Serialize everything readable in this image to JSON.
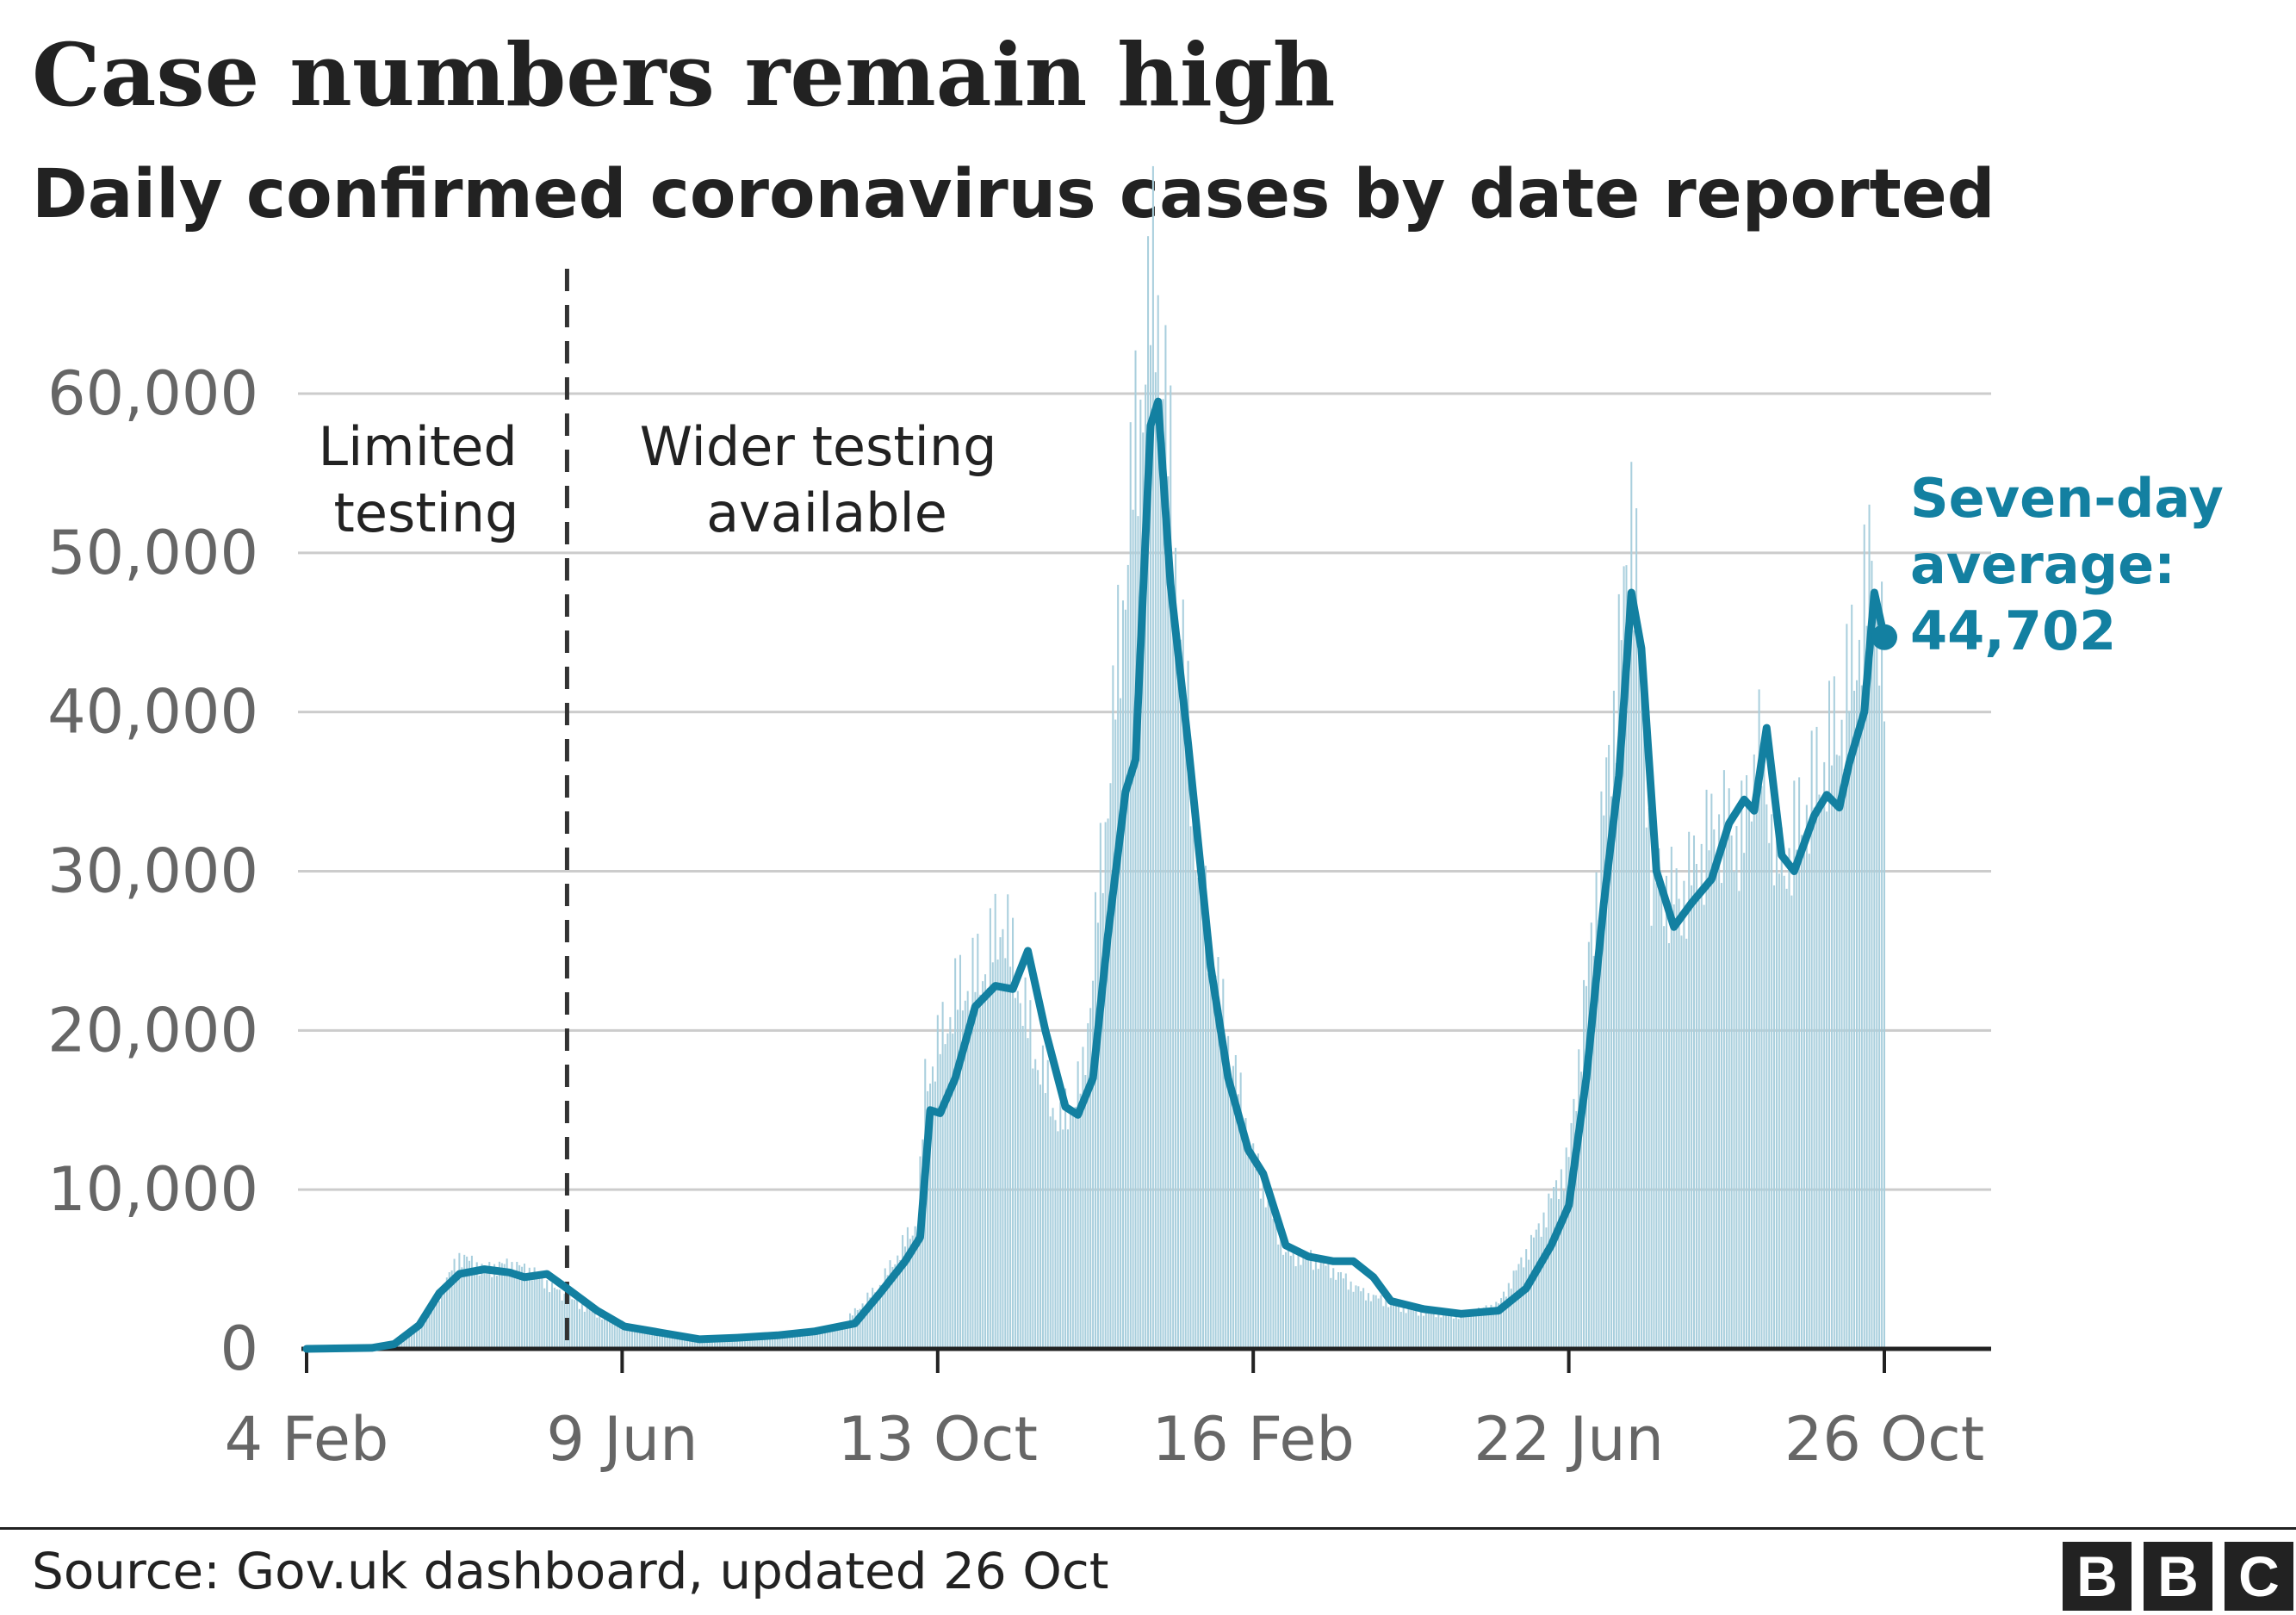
{
  "header": {
    "title": "Case numbers remain high",
    "subtitle": "Daily confirmed coronavirus cases by date reported"
  },
  "annotations": {
    "limited_testing": [
      "Limited",
      "testing"
    ],
    "wider_testing": [
      "Wider testing",
      "available"
    ],
    "average_label": [
      "Seven-day",
      "average:",
      "44,702"
    ]
  },
  "footer": {
    "source": "Source: Gov.uk dashboard, updated 26 Oct",
    "logo": [
      "B",
      "B",
      "C"
    ]
  },
  "colors": {
    "line": "#1380A1",
    "bars": "#a9cfdd",
    "grid": "#cccccc",
    "axis": "#222222",
    "divider": "#333333",
    "text": "#222222",
    "tick_text": "#666666"
  },
  "chart_data": {
    "type": "line",
    "title": "Case numbers remain high",
    "subtitle": "Daily confirmed coronavirus cases by date reported",
    "xlabel": "",
    "ylabel": "",
    "x_ticks": [
      "4 Feb",
      "9 Jun",
      "13 Oct",
      "16 Feb",
      "22 Jun",
      "26 Oct"
    ],
    "x_range": [
      "2020-02-04",
      "2021-10-26"
    ],
    "ylim": [
      0,
      60000
    ],
    "y_ticks": [
      "0",
      "10,000",
      "20,000",
      "30,000",
      "40,000",
      "50,000",
      "60,000"
    ],
    "y_tick_values": [
      0,
      10000,
      20000,
      30000,
      40000,
      50000,
      60000
    ],
    "grid": "horizontal",
    "divider_date": "2020-05-18",
    "series": [
      {
        "name": "Daily confirmed cases",
        "style": "bars",
        "points": [
          [
            "2020-02-04",
            0
          ],
          [
            "2020-03-01",
            100
          ],
          [
            "2020-03-15",
            700
          ],
          [
            "2020-03-25",
            2500
          ],
          [
            "2020-04-05",
            5800
          ],
          [
            "2020-04-15",
            5000
          ],
          [
            "2020-04-25",
            5300
          ],
          [
            "2020-05-05",
            4800
          ],
          [
            "2020-05-15",
            3500
          ],
          [
            "2020-05-30",
            2200
          ],
          [
            "2020-06-15",
            1300
          ],
          [
            "2020-07-05",
            700
          ],
          [
            "2020-07-25",
            650
          ],
          [
            "2020-08-15",
            900
          ],
          [
            "2020-09-05",
            1500
          ],
          [
            "2020-09-20",
            4000
          ],
          [
            "2020-10-05",
            8000
          ],
          [
            "2020-10-08",
            16500
          ],
          [
            "2020-10-20",
            22000
          ],
          [
            "2020-11-01",
            24000
          ],
          [
            "2020-11-08",
            27000
          ],
          [
            "2020-11-20",
            19000
          ],
          [
            "2020-12-01",
            14000
          ],
          [
            "2020-12-10",
            17000
          ],
          [
            "2020-12-20",
            35000
          ],
          [
            "2020-12-29",
            53000
          ],
          [
            "2021-01-03",
            61000
          ],
          [
            "2021-01-08",
            68000
          ],
          [
            "2021-01-15",
            52000
          ],
          [
            "2021-01-25",
            30000
          ],
          [
            "2021-02-05",
            20000
          ],
          [
            "2021-02-16",
            12000
          ],
          [
            "2021-03-01",
            6000
          ],
          [
            "2021-03-15",
            5500
          ],
          [
            "2021-04-01",
            3500
          ],
          [
            "2021-04-20",
            2400
          ],
          [
            "2021-05-10",
            2100
          ],
          [
            "2021-05-25",
            2800
          ],
          [
            "2021-06-10",
            7500
          ],
          [
            "2021-06-22",
            12000
          ],
          [
            "2021-07-05",
            32000
          ],
          [
            "2021-07-15",
            48000
          ],
          [
            "2021-07-17",
            54000
          ],
          [
            "2021-07-25",
            30000
          ],
          [
            "2021-08-05",
            28000
          ],
          [
            "2021-08-20",
            33000
          ],
          [
            "2021-08-31",
            32000
          ],
          [
            "2021-09-05",
            38000
          ],
          [
            "2021-09-15",
            30000
          ],
          [
            "2021-09-30",
            36000
          ],
          [
            "2021-10-10",
            40000
          ],
          [
            "2021-10-20",
            48000
          ],
          [
            "2021-10-21",
            52000
          ],
          [
            "2021-10-26",
            41000
          ]
        ]
      },
      {
        "name": "Seven-day average",
        "style": "line",
        "points": [
          [
            "2020-02-04",
            0
          ],
          [
            "2020-03-01",
            60
          ],
          [
            "2020-03-10",
            300
          ],
          [
            "2020-03-20",
            1500
          ],
          [
            "2020-03-28",
            3500
          ],
          [
            "2020-04-05",
            4700
          ],
          [
            "2020-04-15",
            5000
          ],
          [
            "2020-04-25",
            4800
          ],
          [
            "2020-05-01",
            4500
          ],
          [
            "2020-05-10",
            4700
          ],
          [
            "2020-05-18",
            3800
          ],
          [
            "2020-05-30",
            2400
          ],
          [
            "2020-06-10",
            1400
          ],
          [
            "2020-06-25",
            1000
          ],
          [
            "2020-07-10",
            600
          ],
          [
            "2020-07-25",
            700
          ],
          [
            "2020-08-10",
            850
          ],
          [
            "2020-08-25",
            1100
          ],
          [
            "2020-09-10",
            1600
          ],
          [
            "2020-09-20",
            3500
          ],
          [
            "2020-09-30",
            5500
          ],
          [
            "2020-10-06",
            7000
          ],
          [
            "2020-10-10",
            15000
          ],
          [
            "2020-10-14",
            14800
          ],
          [
            "2020-10-20",
            17000
          ],
          [
            "2020-10-28",
            21500
          ],
          [
            "2020-11-05",
            22800
          ],
          [
            "2020-11-12",
            22600
          ],
          [
            "2020-11-18",
            25000
          ],
          [
            "2020-11-25",
            20000
          ],
          [
            "2020-12-03",
            15200
          ],
          [
            "2020-12-08",
            14700
          ],
          [
            "2020-12-14",
            17000
          ],
          [
            "2020-12-20",
            26000
          ],
          [
            "2020-12-27",
            35000
          ],
          [
            "2020-12-31",
            37000
          ],
          [
            "2021-01-06",
            58000
          ],
          [
            "2021-01-09",
            59500
          ],
          [
            "2021-01-14",
            48000
          ],
          [
            "2021-01-21",
            38000
          ],
          [
            "2021-01-30",
            24000
          ],
          [
            "2021-02-06",
            17000
          ],
          [
            "2021-02-14",
            12500
          ],
          [
            "2021-02-20",
            11000
          ],
          [
            "2021-03-01",
            6500
          ],
          [
            "2021-03-10",
            5800
          ],
          [
            "2021-03-20",
            5500
          ],
          [
            "2021-03-28",
            5500
          ],
          [
            "2021-04-05",
            4500
          ],
          [
            "2021-04-12",
            3000
          ],
          [
            "2021-04-25",
            2500
          ],
          [
            "2021-05-10",
            2200
          ],
          [
            "2021-05-25",
            2400
          ],
          [
            "2021-06-05",
            3800
          ],
          [
            "2021-06-15",
            6500
          ],
          [
            "2021-06-22",
            9000
          ],
          [
            "2021-06-29",
            17000
          ],
          [
            "2021-07-06",
            28000
          ],
          [
            "2021-07-12",
            36000
          ],
          [
            "2021-07-17",
            47500
          ],
          [
            "2021-07-21",
            44000
          ],
          [
            "2021-07-27",
            30000
          ],
          [
            "2021-08-03",
            26500
          ],
          [
            "2021-08-10",
            28000
          ],
          [
            "2021-08-18",
            29500
          ],
          [
            "2021-08-25",
            33000
          ],
          [
            "2021-08-31",
            34500
          ],
          [
            "2021-09-04",
            33800
          ],
          [
            "2021-09-09",
            39000
          ],
          [
            "2021-09-15",
            31000
          ],
          [
            "2021-09-20",
            30000
          ],
          [
            "2021-09-28",
            33500
          ],
          [
            "2021-10-03",
            34800
          ],
          [
            "2021-10-08",
            34000
          ],
          [
            "2021-10-12",
            36800
          ],
          [
            "2021-10-18",
            40000
          ],
          [
            "2021-10-22",
            47500
          ],
          [
            "2021-10-26",
            44702
          ]
        ]
      }
    ],
    "latest_value": 44702
  }
}
